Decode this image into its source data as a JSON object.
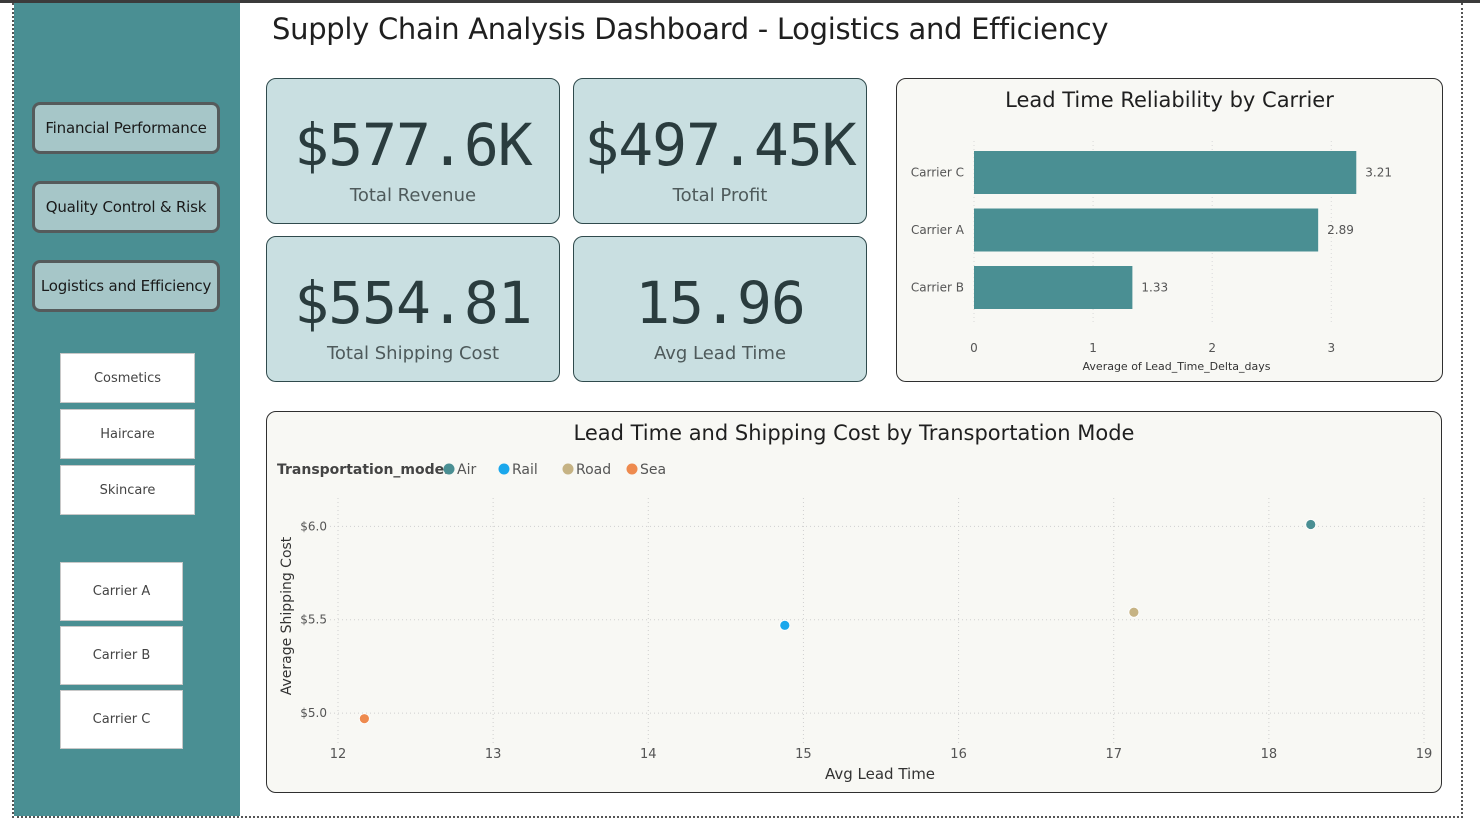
{
  "page_title": "Supply Chain Analysis Dashboard - Logistics and Efficiency",
  "nav": {
    "financial": "Financial Performance",
    "quality": "Quality Control & Risk",
    "logistics": "Logistics and Efficiency"
  },
  "product_slicer": [
    "Cosmetics",
    "Haircare",
    "Skincare"
  ],
  "carrier_slicer": [
    "Carrier A",
    "Carrier B",
    "Carrier C"
  ],
  "kpis": {
    "revenue": {
      "value": "$577.6K",
      "label": "Total Revenue"
    },
    "profit": {
      "value": "$497.45K",
      "label": "Total Profit"
    },
    "shipping": {
      "value": "$554.81",
      "label": "Total Shipping Cost"
    },
    "lead": {
      "value": "15.96",
      "label": "Avg Lead Time"
    }
  },
  "colors": {
    "sidebar": "#4a8f93",
    "bar": "#4a8f93",
    "air": "#4a8f93",
    "rail": "#1aa7ec",
    "road": "#c6b384",
    "sea": "#ee8a4e"
  },
  "chart_data": [
    {
      "type": "bar",
      "orientation": "horizontal",
      "title": "Lead Time Reliability by Carrier",
      "xlabel": "Average of Lead_Time_Delta_days",
      "ylabel": "",
      "categories": [
        "Carrier C",
        "Carrier A",
        "Carrier B"
      ],
      "values": [
        3.21,
        2.89,
        1.33
      ],
      "value_labels": [
        "3.21",
        "2.89",
        "1.33"
      ],
      "xticks": [
        "0",
        "1",
        "2",
        "3"
      ],
      "xlim": [
        0,
        3.3
      ]
    },
    {
      "type": "scatter",
      "title": "Lead Time and Shipping Cost by Transportation Mode",
      "legend_title": "Transportation_modes",
      "legend_position": "top-left",
      "xlabel": "Avg Lead Time",
      "ylabel": "Average Shipping Cost",
      "xlim": [
        12,
        19
      ],
      "ylim": [
        4.92,
        6.12
      ],
      "xticks": [
        "12",
        "13",
        "14",
        "15",
        "16",
        "17",
        "18",
        "19"
      ],
      "yticks": [
        "$5.0",
        "$5.5",
        "$6.0"
      ],
      "grid": true,
      "series": [
        {
          "name": "Air",
          "x": 18.27,
          "y": 6.01
        },
        {
          "name": "Rail",
          "x": 14.88,
          "y": 5.47
        },
        {
          "name": "Road",
          "x": 17.13,
          "y": 5.54
        },
        {
          "name": "Sea",
          "x": 12.17,
          "y": 4.97
        }
      ]
    }
  ]
}
